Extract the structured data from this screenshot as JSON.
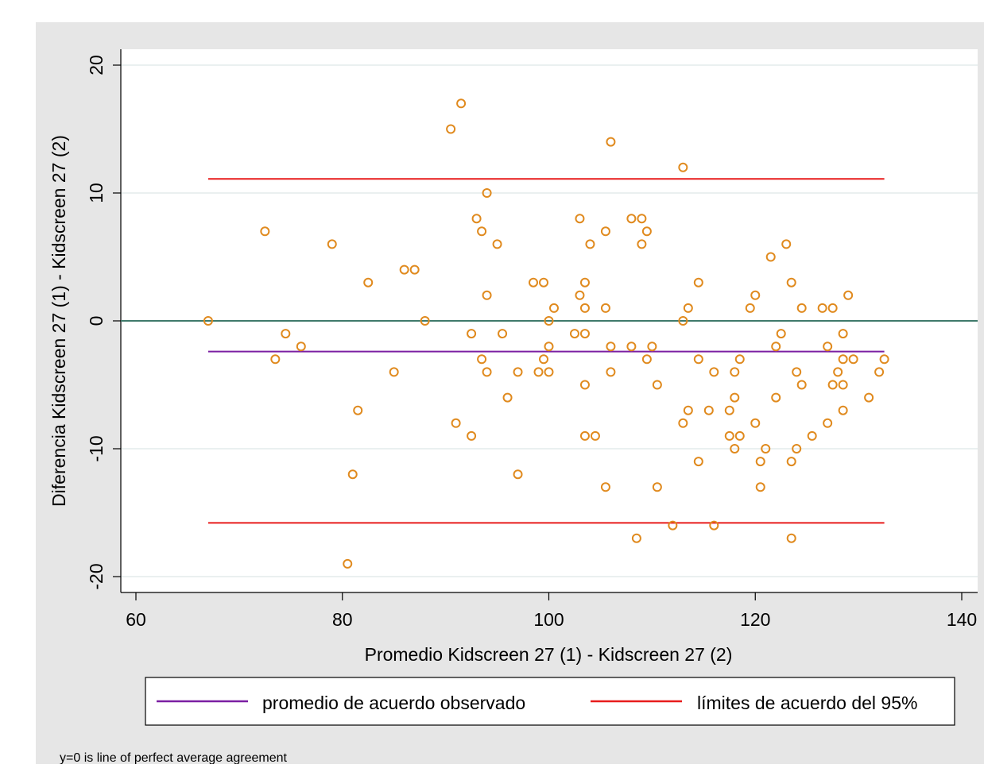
{
  "chart_data": {
    "type": "scatter",
    "xlabel": "Promedio Kidscreen 27 (1) - Kidscreen 27 (2)",
    "ylabel": "Diferencia Kidscreen 27 (1) - Kidscreen 27 (2)",
    "xlim": [
      60,
      140
    ],
    "ylim": [
      -20,
      20
    ],
    "x_ticks": [
      60,
      80,
      100,
      120,
      140
    ],
    "y_ticks": [
      -20,
      -10,
      0,
      10,
      20
    ],
    "x_tick_labels": [
      "60",
      "80",
      "100",
      "120",
      "140"
    ],
    "y_tick_labels": [
      "-20",
      "-10",
      "0",
      "10",
      "20"
    ],
    "grid": true,
    "note": "y=0 is line of perfect average agreement",
    "legend": {
      "position": "bottom",
      "entries": [
        {
          "label": "promedio de acuerdo observado",
          "color": "#7b1fa2"
        },
        {
          "label": "límites de acuerdo del 95%",
          "color": "#e81c1c"
        }
      ]
    },
    "reference_lines": [
      {
        "name": "promedio de acuerdo observado",
        "y": -2.4,
        "x_range": [
          67,
          132.5
        ],
        "color": "#7b1fa2"
      },
      {
        "name": "límites de acuerdo del 95%",
        "y": 11.1,
        "x_range": [
          67,
          132.5
        ],
        "color": "#e81c1c"
      },
      {
        "name": "límites de acuerdo del 95%",
        "y": -15.8,
        "x_range": [
          67,
          132.5
        ],
        "color": "#e81c1c"
      },
      {
        "name": "y=0",
        "y": 0,
        "x_range": [
          60,
          140
        ],
        "color": "#3f7a6b"
      }
    ],
    "series": [
      {
        "marker_color": "#e08a1e",
        "points": [
          [
            67,
            0
          ],
          [
            72.5,
            7
          ],
          [
            73.5,
            -3
          ],
          [
            74.5,
            -1
          ],
          [
            76,
            -2
          ],
          [
            79,
            6
          ],
          [
            80.5,
            -19
          ],
          [
            81,
            -12
          ],
          [
            81.5,
            -7
          ],
          [
            82.5,
            3
          ],
          [
            85,
            -4
          ],
          [
            86,
            4
          ],
          [
            87,
            4
          ],
          [
            88,
            0
          ],
          [
            90.5,
            15
          ],
          [
            91,
            -8
          ],
          [
            91.5,
            17
          ],
          [
            92.5,
            -1
          ],
          [
            92.5,
            -9
          ],
          [
            93,
            8
          ],
          [
            93.5,
            7
          ],
          [
            93.5,
            -3
          ],
          [
            94,
            10
          ],
          [
            94,
            2
          ],
          [
            94,
            -4
          ],
          [
            95,
            6
          ],
          [
            95.5,
            -1
          ],
          [
            96,
            -6
          ],
          [
            97,
            -4
          ],
          [
            97,
            -12
          ],
          [
            98.5,
            3
          ],
          [
            99,
            -4
          ],
          [
            99.5,
            3
          ],
          [
            99.5,
            -3
          ],
          [
            100,
            0
          ],
          [
            100,
            -2
          ],
          [
            100,
            -4
          ],
          [
            100.5,
            1
          ],
          [
            102.5,
            -1
          ],
          [
            103,
            8
          ],
          [
            103,
            2
          ],
          [
            103.5,
            3
          ],
          [
            103.5,
            1
          ],
          [
            103.5,
            -1
          ],
          [
            103.5,
            -5
          ],
          [
            103.5,
            -9
          ],
          [
            104,
            6
          ],
          [
            104.5,
            -9
          ],
          [
            105.5,
            7
          ],
          [
            105.5,
            1
          ],
          [
            105.5,
            -13
          ],
          [
            106,
            14
          ],
          [
            106,
            -2
          ],
          [
            106,
            -4
          ],
          [
            108,
            8
          ],
          [
            108,
            -2
          ],
          [
            108.5,
            -17
          ],
          [
            109,
            8
          ],
          [
            109,
            6
          ],
          [
            109.5,
            7
          ],
          [
            109.5,
            -3
          ],
          [
            110,
            -2
          ],
          [
            110.5,
            -5
          ],
          [
            110.5,
            -13
          ],
          [
            112,
            -16
          ],
          [
            113,
            12
          ],
          [
            113,
            0
          ],
          [
            113,
            -8
          ],
          [
            113.5,
            1
          ],
          [
            113.5,
            -7
          ],
          [
            114.5,
            3
          ],
          [
            114.5,
            -3
          ],
          [
            114.5,
            -11
          ],
          [
            115.5,
            -7
          ],
          [
            116,
            -4
          ],
          [
            116,
            -16
          ],
          [
            117.5,
            -7
          ],
          [
            117.5,
            -9
          ],
          [
            118,
            -4
          ],
          [
            118,
            -6
          ],
          [
            118,
            -10
          ],
          [
            118.5,
            -3
          ],
          [
            118.5,
            -9
          ],
          [
            119.5,
            1
          ],
          [
            120,
            2
          ],
          [
            120,
            -8
          ],
          [
            120.5,
            -11
          ],
          [
            120.5,
            -13
          ],
          [
            121,
            -10
          ],
          [
            121.5,
            5
          ],
          [
            122,
            -2
          ],
          [
            122,
            -6
          ],
          [
            122.5,
            -1
          ],
          [
            123,
            6
          ],
          [
            123.5,
            3
          ],
          [
            123.5,
            -11
          ],
          [
            123.5,
            -17
          ],
          [
            124,
            -4
          ],
          [
            124,
            -10
          ],
          [
            124.5,
            1
          ],
          [
            124.5,
            -5
          ],
          [
            125.5,
            -9
          ],
          [
            126.5,
            1
          ],
          [
            127,
            -2
          ],
          [
            127,
            -8
          ],
          [
            127.5,
            1
          ],
          [
            127.5,
            -5
          ],
          [
            128,
            -4
          ],
          [
            128.5,
            -1
          ],
          [
            128.5,
            -3
          ],
          [
            128.5,
            -5
          ],
          [
            128.5,
            -7
          ],
          [
            129,
            2
          ],
          [
            129.5,
            -3
          ],
          [
            131,
            -6
          ],
          [
            132,
            -4
          ],
          [
            132.5,
            -3
          ]
        ]
      }
    ]
  }
}
